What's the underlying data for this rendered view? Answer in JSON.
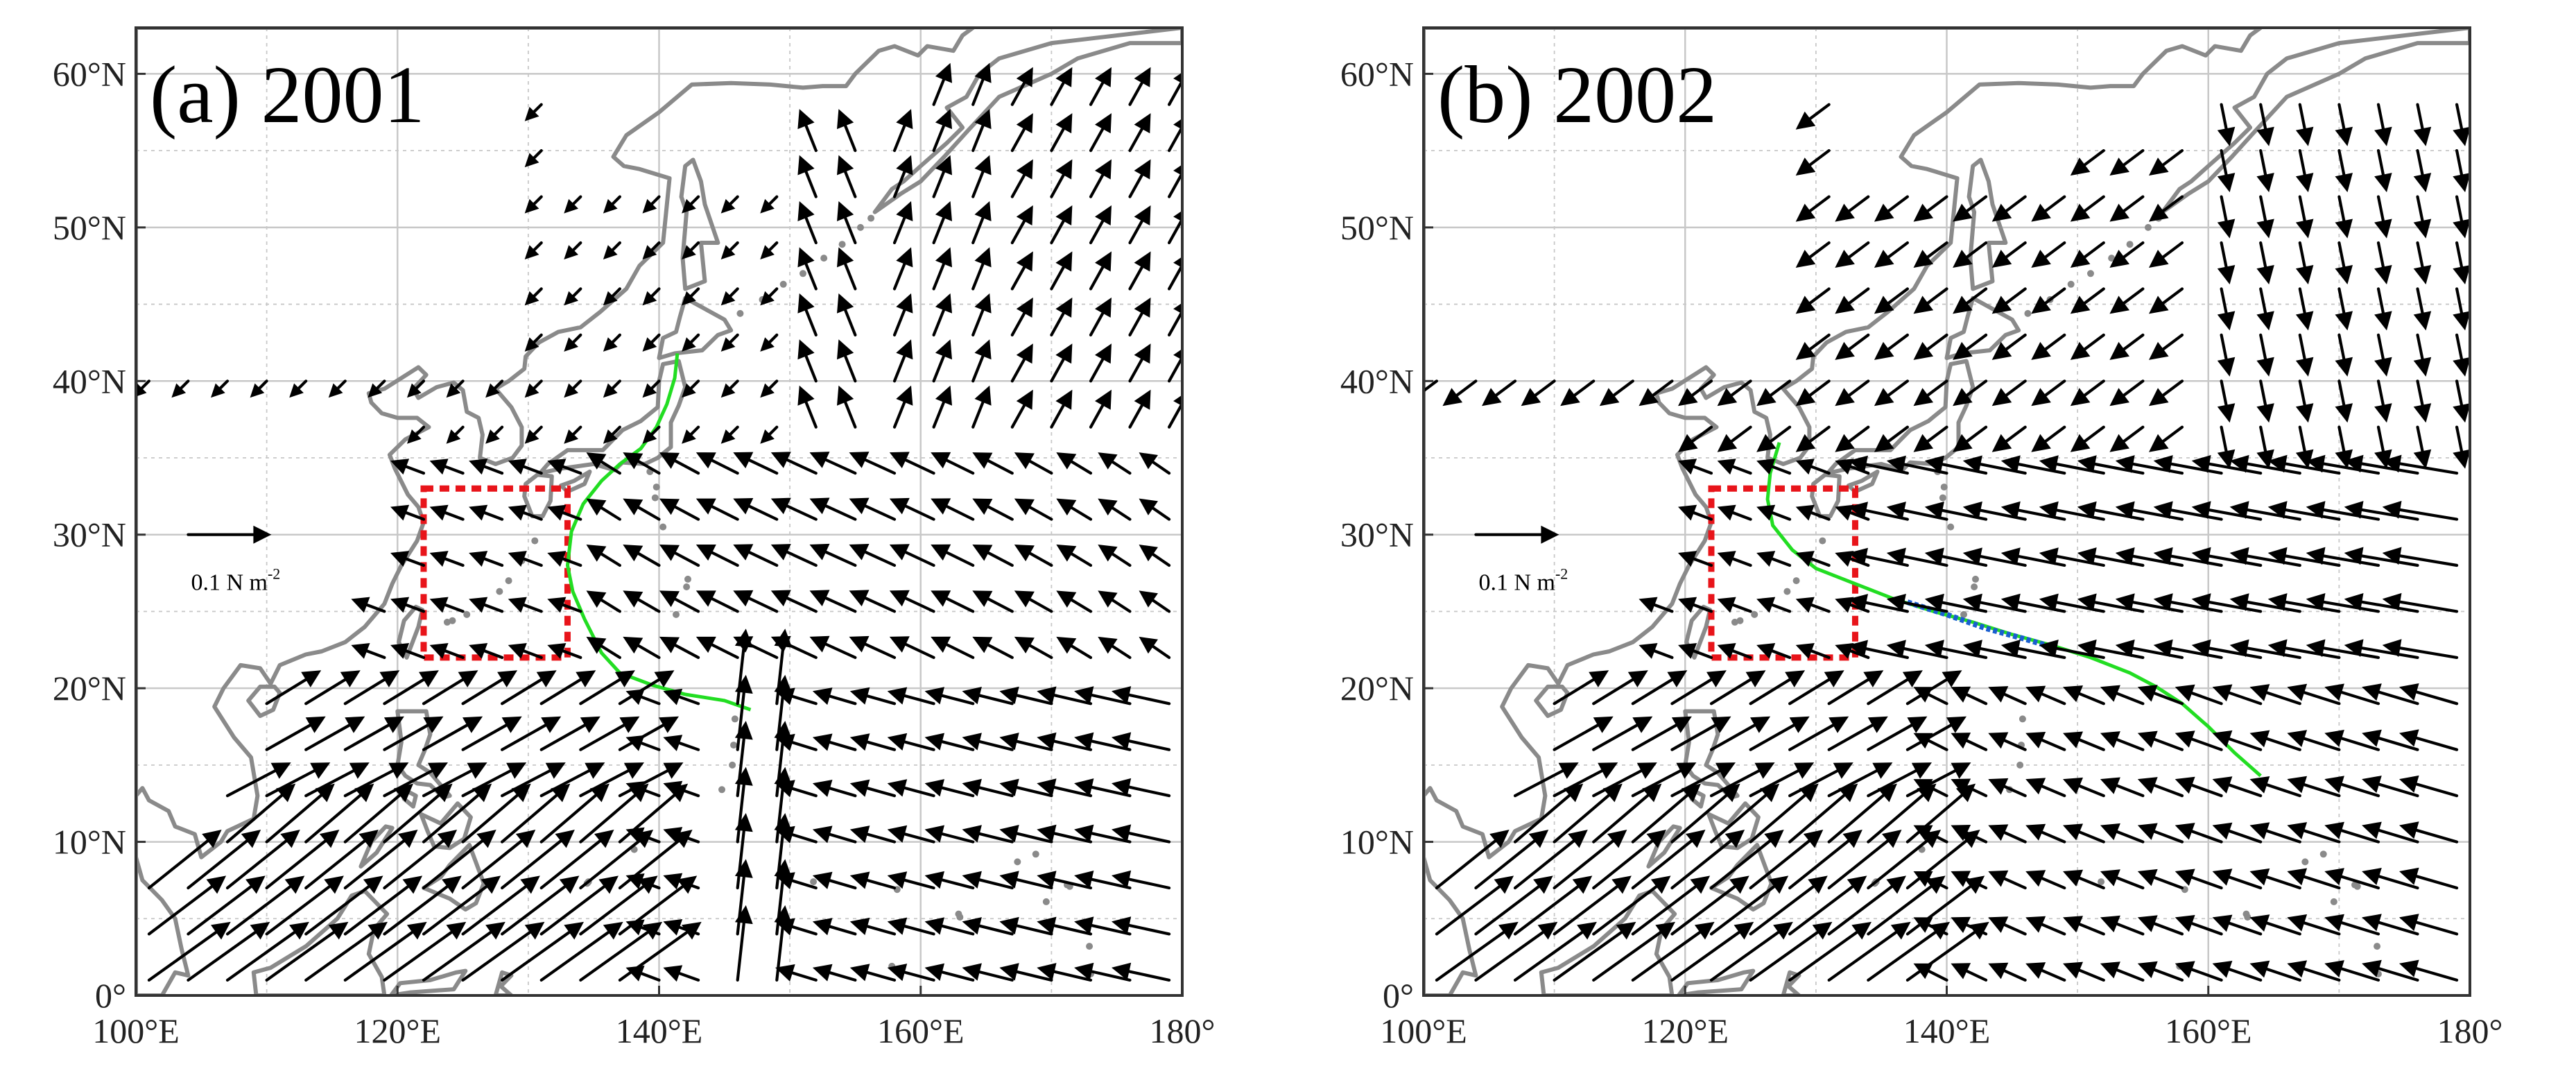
{
  "figure": {
    "panels": [
      {
        "title": "(a) 2001",
        "y_ticks": [
          "0°",
          "10°N",
          "20°N",
          "30°N",
          "40°N",
          "50°N",
          "60°N"
        ],
        "x_ticks": [
          "100°E",
          "120°E",
          "140°E",
          "160°E",
          "180°"
        ],
        "reference_vector": {
          "label": "0.1 N m",
          "exponent": "-2",
          "magnitude": 0.1
        },
        "box": {
          "lon": [
            122,
            133
          ],
          "lat": [
            22,
            33
          ],
          "color": "#e8141a"
        },
        "track_color": "#22dd22"
      },
      {
        "title": "(b) 2002",
        "y_ticks": [
          "0°",
          "10°N",
          "20°N",
          "30°N",
          "40°N",
          "50°N",
          "60°N"
        ],
        "x_ticks": [
          "100°E",
          "120°E",
          "140°E",
          "160°E",
          "180°"
        ],
        "reference_vector": {
          "label": "0.1 N m",
          "exponent": "-2",
          "magnitude": 0.1
        },
        "box": {
          "lon": [
            122,
            133
          ],
          "lat": [
            22,
            33
          ],
          "color": "#e8141a"
        },
        "track_color": "#22dd22",
        "track_highlight_color": "#1a5fd0"
      }
    ],
    "map_extent": {
      "lon": [
        100,
        180
      ],
      "lat": [
        0,
        63
      ]
    },
    "colors": {
      "land": "#8a8a8a",
      "vectors": "#000000",
      "grid": "#c8c8c8"
    }
  }
}
